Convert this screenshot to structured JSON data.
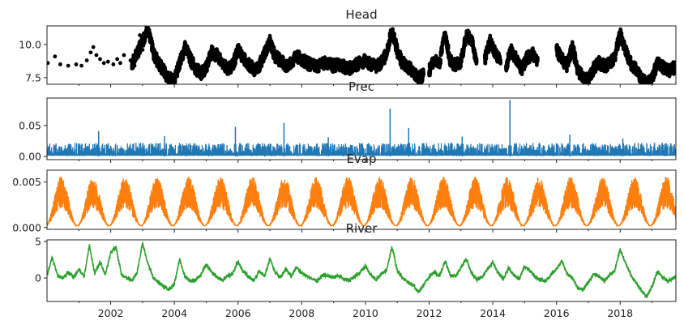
{
  "chart_data": {
    "type": "line",
    "x_range": [
      "2000-01-01",
      "2019-10-01"
    ],
    "x_ticks": [
      "2002",
      "2004",
      "2006",
      "2008",
      "2010",
      "2012",
      "2014",
      "2016",
      "2018"
    ],
    "grid": false,
    "panels": [
      {
        "id": "head",
        "title": "Head",
        "style": "scatter",
        "color": "#000000",
        "ylim": [
          7.0,
          11.4
        ],
        "yticks": [
          "7.5",
          "10.0"
        ],
        "gaps": [
          [
            "2000-01-01",
            "2002-09-01"
          ],
          [
            "2011-11-01",
            "2012-01-01"
          ],
          [
            "2013-07-01",
            "2013-10-01"
          ],
          [
            "2014-04-01",
            "2014-06-01"
          ],
          [
            "2015-06-01",
            "2016-01-01"
          ]
        ],
        "points": [
          [
            "2000-01-10",
            8.6
          ],
          [
            "2000-04-01",
            9.1
          ],
          [
            "2000-06-01",
            8.5
          ],
          [
            "2000-09-01",
            8.4
          ],
          [
            "2000-12-01",
            8.5
          ],
          [
            "2001-02-01",
            8.4
          ],
          [
            "2001-04-01",
            8.8
          ],
          [
            "2001-05-15",
            9.4
          ],
          [
            "2001-06-15",
            9.8
          ],
          [
            "2001-07-20",
            9.2
          ],
          [
            "2001-09-01",
            8.9
          ],
          [
            "2001-10-15",
            8.6
          ],
          [
            "2001-12-01",
            8.7
          ],
          [
            "2002-02-01",
            8.5
          ],
          [
            "2002-03-15",
            8.9
          ],
          [
            "2002-04-20",
            8.6
          ],
          [
            "2002-06-01",
            9.2
          ],
          [
            "2002-08-15",
            8.8
          ],
          [
            "2002-10-01",
            8.4
          ],
          [
            "2002-11-15",
            9.9
          ],
          [
            "2002-12-01",
            10.7
          ],
          [
            "2003-01-01",
            9.6
          ]
        ],
        "series": [
          [
            "2002-09-01",
            8.5
          ],
          [
            "2003-01-01",
            10.2
          ],
          [
            "2003-03-01",
            11.2
          ],
          [
            "2003-05-01",
            9.4
          ],
          [
            "2003-07-01",
            8.6
          ],
          [
            "2003-09-01",
            8.0
          ],
          [
            "2003-11-01",
            7.4
          ],
          [
            "2004-01-01",
            7.3
          ],
          [
            "2004-03-01",
            8.6
          ],
          [
            "2004-05-01",
            9.8
          ],
          [
            "2004-07-01",
            8.9
          ],
          [
            "2004-09-01",
            8.2
          ],
          [
            "2004-11-01",
            7.8
          ],
          [
            "2005-01-01",
            8.3
          ],
          [
            "2005-03-01",
            9.4
          ],
          [
            "2005-05-01",
            9.2
          ],
          [
            "2005-07-01",
            8.6
          ],
          [
            "2005-09-01",
            8.1
          ],
          [
            "2005-11-01",
            8.4
          ],
          [
            "2006-01-01",
            9.6
          ],
          [
            "2006-03-01",
            9.0
          ],
          [
            "2006-05-01",
            8.5
          ],
          [
            "2006-07-01",
            8.1
          ],
          [
            "2006-09-01",
            8.4
          ],
          [
            "2006-11-01",
            9.3
          ],
          [
            "2007-01-01",
            10.2
          ],
          [
            "2007-03-01",
            9.1
          ],
          [
            "2007-05-01",
            8.8
          ],
          [
            "2007-07-01",
            8.4
          ],
          [
            "2007-09-01",
            8.7
          ],
          [
            "2007-11-01",
            9.1
          ],
          [
            "2008-01-01",
            8.9
          ],
          [
            "2008-03-01",
            8.6
          ],
          [
            "2008-05-01",
            8.4
          ],
          [
            "2008-07-01",
            8.3
          ],
          [
            "2008-09-01",
            8.6
          ],
          [
            "2008-11-01",
            8.5
          ],
          [
            "2009-01-01",
            8.4
          ],
          [
            "2009-03-01",
            8.5
          ],
          [
            "2009-05-01",
            8.3
          ],
          [
            "2009-07-01",
            8.2
          ],
          [
            "2009-09-01",
            8.4
          ],
          [
            "2009-11-01",
            8.6
          ],
          [
            "2010-01-01",
            8.8
          ],
          [
            "2010-03-01",
            8.5
          ],
          [
            "2010-05-01",
            8.3
          ],
          [
            "2010-07-01",
            8.6
          ],
          [
            "2010-09-01",
            9.3
          ],
          [
            "2010-11-01",
            11.1
          ],
          [
            "2011-01-01",
            9.5
          ],
          [
            "2011-03-01",
            8.6
          ],
          [
            "2011-05-01",
            8.3
          ],
          [
            "2011-07-01",
            8.0
          ],
          [
            "2011-09-01",
            7.4
          ],
          [
            "2011-11-01",
            7.8
          ],
          [
            "2012-01-01",
            8.0
          ],
          [
            "2012-03-01",
            8.8
          ],
          [
            "2012-05-01",
            8.6
          ],
          [
            "2012-07-01",
            10.9
          ],
          [
            "2012-09-01",
            8.7
          ],
          [
            "2012-11-01",
            8.5
          ],
          [
            "2013-01-01",
            8.7
          ],
          [
            "2013-03-01",
            10.7
          ],
          [
            "2013-05-01",
            10.4
          ],
          [
            "2013-07-01",
            8.6
          ],
          [
            "2013-10-01",
            8.9
          ],
          [
            "2013-12-01",
            10.2
          ],
          [
            "2014-02-01",
            9.4
          ],
          [
            "2014-04-01",
            8.6
          ],
          [
            "2014-06-01",
            8.4
          ],
          [
            "2014-08-01",
            9.6
          ],
          [
            "2014-10-01",
            8.8
          ],
          [
            "2014-12-01",
            8.2
          ],
          [
            "2015-02-01",
            9.0
          ],
          [
            "2015-04-01",
            9.3
          ],
          [
            "2015-06-01",
            8.5
          ],
          [
            "2016-01-01",
            9.6
          ],
          [
            "2016-03-01",
            8.9
          ],
          [
            "2016-05-01",
            8.4
          ],
          [
            "2016-07-01",
            9.8
          ],
          [
            "2016-09-01",
            8.1
          ],
          [
            "2016-11-01",
            7.5
          ],
          [
            "2017-01-01",
            7.3
          ],
          [
            "2017-03-01",
            8.2
          ],
          [
            "2017-05-01",
            8.6
          ],
          [
            "2017-07-01",
            8.4
          ],
          [
            "2017-09-01",
            8.5
          ],
          [
            "2017-11-01",
            9.1
          ],
          [
            "2018-01-01",
            10.9
          ],
          [
            "2018-03-01",
            9.5
          ],
          [
            "2018-05-01",
            8.6
          ],
          [
            "2018-07-01",
            8.1
          ],
          [
            "2018-09-01",
            7.4
          ],
          [
            "2018-11-01",
            7.0
          ],
          [
            "2019-01-01",
            7.5
          ],
          [
            "2019-03-01",
            8.6
          ],
          [
            "2019-05-01",
            8.3
          ],
          [
            "2019-07-01",
            8.0
          ],
          [
            "2019-10-01",
            8.3
          ]
        ]
      },
      {
        "id": "prec",
        "title": "Prec",
        "style": "line",
        "color": "#1f77b4",
        "ylim": [
          -0.005,
          0.094
        ],
        "yticks": [
          "0.00",
          "0.05"
        ],
        "baseline": 0.002,
        "typical_peak": 0.02,
        "spikes": [
          [
            "2001-08-15",
            0.041
          ],
          [
            "2003-09-10",
            0.033
          ],
          [
            "2005-12-01",
            0.048
          ],
          [
            "2007-06-10",
            0.054
          ],
          [
            "2008-11-01",
            0.031
          ],
          [
            "2010-10-10",
            0.077
          ],
          [
            "2011-05-10",
            0.046
          ],
          [
            "2013-01-15",
            0.032
          ],
          [
            "2014-07-15",
            0.091
          ],
          [
            "2016-06-01",
            0.035
          ],
          [
            "2018-02-01",
            0.029
          ]
        ]
      },
      {
        "id": "evap",
        "title": "Evap",
        "style": "line",
        "color": "#ff7f0e",
        "ylim": [
          -0.0002,
          0.0063
        ],
        "yticks": [
          "0.000",
          "0.005"
        ],
        "annual_cycle": {
          "min": 0.0002,
          "max": 0.0056,
          "peak_month": "June"
        }
      },
      {
        "id": "river",
        "title": "River",
        "style": "line",
        "color": "#2ca02c",
        "ylim": [
          -3.2,
          5.2
        ],
        "yticks": [
          "0",
          "5"
        ],
        "series": [
          [
            "2000-01-01",
            0.4
          ],
          [
            "2000-03-01",
            2.8
          ],
          [
            "2000-05-01",
            0.3
          ],
          [
            "2000-07-01",
            0.0
          ],
          [
            "2000-09-01",
            0.8
          ],
          [
            "2000-11-01",
            0.1
          ],
          [
            "2001-01-01",
            1.2
          ],
          [
            "2001-03-01",
            0.2
          ],
          [
            "2001-05-01",
            4.4
          ],
          [
            "2001-07-01",
            0.6
          ],
          [
            "2001-09-01",
            2.2
          ],
          [
            "2001-11-01",
            0.4
          ],
          [
            "2002-01-01",
            3.5
          ],
          [
            "2002-03-01",
            4.2
          ],
          [
            "2002-05-01",
            0.6
          ],
          [
            "2002-07-01",
            0.0
          ],
          [
            "2002-09-01",
            -0.4
          ],
          [
            "2002-11-01",
            0.8
          ],
          [
            "2003-01-01",
            4.8
          ],
          [
            "2003-03-01",
            2.0
          ],
          [
            "2003-05-01",
            0.1
          ],
          [
            "2003-07-01",
            -0.6
          ],
          [
            "2003-09-01",
            -1.1
          ],
          [
            "2003-11-01",
            -1.6
          ],
          [
            "2004-01-01",
            -0.8
          ],
          [
            "2004-03-01",
            2.6
          ],
          [
            "2004-05-01",
            0.2
          ],
          [
            "2004-07-01",
            -0.4
          ],
          [
            "2004-09-01",
            -0.3
          ],
          [
            "2004-11-01",
            0.4
          ],
          [
            "2005-01-01",
            1.8
          ],
          [
            "2005-03-01",
            0.9
          ],
          [
            "2005-05-01",
            0.1
          ],
          [
            "2005-07-01",
            -0.3
          ],
          [
            "2005-09-01",
            0.2
          ],
          [
            "2005-11-01",
            0.6
          ],
          [
            "2006-01-01",
            2.3
          ],
          [
            "2006-03-01",
            0.8
          ],
          [
            "2006-05-01",
            0.2
          ],
          [
            "2006-07-01",
            -0.4
          ],
          [
            "2006-09-01",
            0.9
          ],
          [
            "2006-11-01",
            0.3
          ],
          [
            "2007-01-01",
            2.6
          ],
          [
            "2007-03-01",
            0.7
          ],
          [
            "2007-05-01",
            0.1
          ],
          [
            "2007-07-01",
            1.2
          ],
          [
            "2007-09-01",
            0.2
          ],
          [
            "2007-11-01",
            1.5
          ],
          [
            "2008-01-01",
            0.7
          ],
          [
            "2008-03-01",
            0.2
          ],
          [
            "2008-05-01",
            -0.1
          ],
          [
            "2008-07-01",
            -0.3
          ],
          [
            "2008-09-01",
            0.4
          ],
          [
            "2008-11-01",
            0.3
          ],
          [
            "2009-01-01",
            0.1
          ],
          [
            "2009-03-01",
            0.3
          ],
          [
            "2009-05-01",
            -0.2
          ],
          [
            "2009-07-01",
            -0.3
          ],
          [
            "2009-09-01",
            0.2
          ],
          [
            "2009-11-01",
            0.8
          ],
          [
            "2010-01-01",
            1.6
          ],
          [
            "2010-03-01",
            0.4
          ],
          [
            "2010-05-01",
            -0.2
          ],
          [
            "2010-07-01",
            0.5
          ],
          [
            "2010-09-01",
            1.1
          ],
          [
            "2010-11-01",
            4.3
          ],
          [
            "2011-01-01",
            1.0
          ],
          [
            "2011-03-01",
            0.1
          ],
          [
            "2011-05-01",
            -0.6
          ],
          [
            "2011-07-01",
            -1.0
          ],
          [
            "2011-09-01",
            -1.9
          ],
          [
            "2011-11-01",
            -0.9
          ],
          [
            "2012-01-01",
            0.2
          ],
          [
            "2012-03-01",
            0.8
          ],
          [
            "2012-05-01",
            0.3
          ],
          [
            "2012-07-01",
            2.3
          ],
          [
            "2012-09-01",
            0.4
          ],
          [
            "2012-11-01",
            0.2
          ],
          [
            "2013-01-01",
            1.4
          ],
          [
            "2013-03-01",
            2.6
          ],
          [
            "2013-05-01",
            0.6
          ],
          [
            "2013-07-01",
            -0.2
          ],
          [
            "2013-09-01",
            0.1
          ],
          [
            "2013-11-01",
            1.2
          ],
          [
            "2014-01-01",
            2.2
          ],
          [
            "2014-03-01",
            0.6
          ],
          [
            "2014-05-01",
            -0.1
          ],
          [
            "2014-07-01",
            1.4
          ],
          [
            "2014-09-01",
            0.3
          ],
          [
            "2014-11-01",
            -0.2
          ],
          [
            "2015-01-01",
            1.6
          ],
          [
            "2015-03-01",
            0.9
          ],
          [
            "2015-05-01",
            0.2
          ],
          [
            "2015-07-01",
            -0.3
          ],
          [
            "2015-09-01",
            -0.4
          ],
          [
            "2015-11-01",
            0.5
          ],
          [
            "2016-01-01",
            1.2
          ],
          [
            "2016-03-01",
            2.3
          ],
          [
            "2016-05-01",
            0.6
          ],
          [
            "2016-07-01",
            0.0
          ],
          [
            "2016-09-01",
            -1.4
          ],
          [
            "2016-11-01",
            -1.6
          ],
          [
            "2017-01-01",
            -0.6
          ],
          [
            "2017-03-01",
            0.6
          ],
          [
            "2017-05-01",
            0.2
          ],
          [
            "2017-07-01",
            -0.4
          ],
          [
            "2017-09-01",
            0.4
          ],
          [
            "2017-11-01",
            1.0
          ],
          [
            "2018-01-01",
            3.9
          ],
          [
            "2018-03-01",
            2.1
          ],
          [
            "2018-05-01",
            0.4
          ],
          [
            "2018-07-01",
            -0.6
          ],
          [
            "2018-09-01",
            -1.8
          ],
          [
            "2018-11-01",
            -2.6
          ],
          [
            "2019-01-01",
            -1.1
          ],
          [
            "2019-03-01",
            0.8
          ],
          [
            "2019-05-01",
            0.1
          ],
          [
            "2019-07-01",
            -0.4
          ],
          [
            "2019-10-01",
            0.2
          ]
        ]
      }
    ]
  }
}
